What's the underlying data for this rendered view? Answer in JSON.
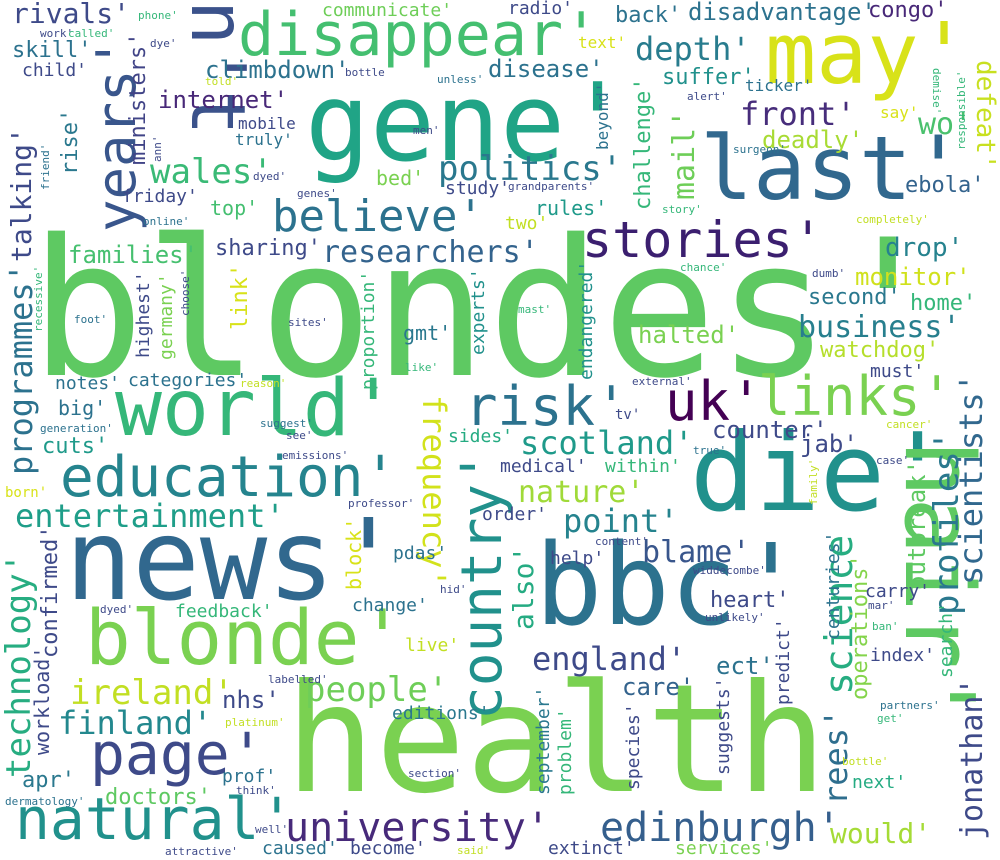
{
  "words": {
    "blondes": {
      "text": "blondes'",
      "color": "#5ec962"
    },
    "health": {
      "text": "health",
      "color": "#7ad151"
    },
    "news": {
      "text": "news'",
      "color": "#31688e"
    },
    "bbc": {
      "text": "bbc'",
      "color": "#2c728e"
    },
    "die": {
      "text": "die'",
      "color": "#21918c"
    },
    "gene": {
      "text": "gene'",
      "color": "#20a486"
    },
    "world": {
      "text": "world'",
      "color": "#35b779"
    },
    "last": {
      "text": "last'",
      "color": "#31688e"
    },
    "may": {
      "text": "may'",
      "color": "#d8e219"
    },
    "hair": {
      "text": "hair'",
      "color": "#5ec962"
    },
    "nt": {
      "text": "n't",
      "color": "#3b528b"
    },
    "blonde": {
      "text": "blonde'",
      "color": "#7ad151"
    },
    "natural": {
      "text": "natural'",
      "color": "#21918c"
    },
    "disappear": {
      "text": "disappear'",
      "color": "#44bf70"
    },
    "education": {
      "text": "education'",
      "color": "#25848e"
    },
    "page": {
      "text": "page'",
      "color": "#3e4a89"
    },
    "country": {
      "text": "country'",
      "color": "#21918c"
    },
    "risk": {
      "text": "risk'",
      "color": "#2c728e"
    },
    "uk": {
      "text": "uk'",
      "color": "#440154"
    },
    "links": {
      "text": "links'",
      "color": "#7ad151"
    },
    "stories": {
      "text": "stories'",
      "color": "#3b1f6f"
    },
    "believe": {
      "text": "believe'",
      "color": "#2c728e"
    },
    "university": {
      "text": "university'",
      "color": "#472a7a"
    },
    "edinburgh": {
      "text": "edinburgh'",
      "color": "#355f8d"
    },
    "years": {
      "text": "years'",
      "color": "#39568c"
    },
    "entertainment": {
      "text": "entertainment'",
      "color": "#1f9e89"
    },
    "science": {
      "text": "science",
      "color": "#27ad81"
    },
    "scotland": {
      "text": "scotland'",
      "color": "#1f9a8a"
    },
    "england": {
      "text": "england'",
      "color": "#3e4a89"
    },
    "people": {
      "text": "people'",
      "color": "#6ece58"
    },
    "ireland": {
      "text": "ireland'",
      "color": "#c2df23"
    },
    "finland": {
      "text": "finland'",
      "color": "#23888e"
    },
    "politics": {
      "text": "politics'",
      "color": "#2a788e"
    },
    "scientists": {
      "text": "scientists'",
      "color": "#31688e"
    },
    "profiles": {
      "text": "profiles'",
      "color": "#2a788e"
    },
    "jonathan": {
      "text": "jonathan'",
      "color": "#3e4a89"
    },
    "programmes": {
      "text": "programmes'",
      "color": "#2c728e"
    },
    "technology": {
      "text": "technology'",
      "color": "#27ad81"
    },
    "frequency": {
      "text": "frequency'",
      "color": "#d2e21b"
    },
    "depth": {
      "text": "depth'",
      "color": "#287c8e"
    },
    "front": {
      "text": "front'",
      "color": "#472d7b"
    },
    "point": {
      "text": "point'",
      "color": "#25838e"
    },
    "nature": {
      "text": "nature'",
      "color": "#a0da39"
    },
    "blame": {
      "text": "blame'",
      "color": "#39568c"
    },
    "rees": {
      "text": "rees'",
      "color": "#2e6e8e"
    },
    "business": {
      "text": "business'",
      "color": "#277f8e"
    },
    "researchers": {
      "text": "researchers'",
      "color": "#33638d"
    },
    "talking": {
      "text": "talking'",
      "color": "#3e4a89"
    },
    "wales": {
      "text": "wales'",
      "color": "#3aba76"
    },
    "mail": {
      "text": "mail'",
      "color": "#6ece58"
    },
    "would": {
      "text": "would'",
      "color": "#a5db36"
    },
    "rivals": {
      "text": "rivals'",
      "color": "#3e4a89"
    },
    "deadly": {
      "text": "deadly'",
      "color": "#a8db34"
    },
    "drop": {
      "text": "drop'",
      "color": "#26828e"
    },
    "monitor": {
      "text": "monitor'",
      "color": "#d0e11c"
    },
    "ebola": {
      "text": "ebola'",
      "color": "#33638d"
    },
    "wo": {
      "text": "wo'",
      "color": "#4ac16d"
    },
    "defeat": {
      "text": "defeat'",
      "color": "#c8e020"
    },
    "also": {
      "text": "also'",
      "color": "#25ab82"
    },
    "halted": {
      "text": "halted'",
      "color": "#7ad151"
    },
    "families": {
      "text": "families'",
      "color": "#46c06f"
    },
    "outbreak": {
      "text": "outbreak'",
      "color": "#5ec962"
    },
    "ministers": {
      "text": "ministers'",
      "color": "#414487"
    },
    "challenge": {
      "text": "challenge'",
      "color": "#35b779"
    },
    "disease": {
      "text": "disease'",
      "color": "#2c728e"
    },
    "internet": {
      "text": "internet'",
      "color": "#482878"
    },
    "climbdown": {
      "text": "climbdown'",
      "color": "#2c728e"
    },
    "disadvantage": {
      "text": "disadvantage'",
      "color": "#2c728e"
    },
    "watchdog": {
      "text": "watchdog'",
      "color": "#b5de2b"
    },
    "counter": {
      "text": "counter'",
      "color": "#3e4a89"
    },
    "heart": {
      "text": "heart'",
      "color": "#3e4a89"
    },
    "operations": {
      "text": "operations'",
      "color": "#84d44b"
    },
    "care": {
      "text": "care'",
      "color": "#33638d"
    },
    "cuts": {
      "text": "cuts'",
      "color": "#1f9a8a"
    },
    "doctors": {
      "text": "doctors'",
      "color": "#5ec962"
    },
    "nhs": {
      "text": "nhs'",
      "color": "#3e4a89"
    },
    "apr": {
      "text": "apr'",
      "color": "#2a788e"
    },
    "index": {
      "text": "index'",
      "color": "#3e4a89"
    },
    "ect": {
      "text": "ect'",
      "color": "#2c728e"
    },
    "workload": {
      "text": "workload'",
      "color": "#3e4a89"
    },
    "confirmed": {
      "text": "confirmed'",
      "color": "#3e4a89"
    },
    "suffer": {
      "text": "suffer'",
      "color": "#21918c"
    },
    "congo": {
      "text": "congo'",
      "color": "#482878"
    },
    "back": {
      "text": "back'",
      "color": "#2c728e"
    },
    "communicate": {
      "text": "communicate'",
      "color": "#6ece58"
    },
    "radio": {
      "text": "radio'",
      "color": "#3e4a89"
    },
    "skill": {
      "text": "skill'",
      "color": "#2c728e"
    },
    "child": {
      "text": "child'",
      "color": "#3e4a89"
    },
    "rise": {
      "text": "rise'",
      "color": "#2a788e"
    },
    "friday": {
      "text": "friday'",
      "color": "#3e4a89"
    },
    "top": {
      "text": "top'",
      "color": "#44bf70"
    },
    "bed": {
      "text": "bed'",
      "color": "#7ad151"
    },
    "study": {
      "text": "study'",
      "color": "#3e4a89"
    },
    "rules": {
      "text": "rules'",
      "color": "#1f9a8a"
    },
    "two": {
      "text": "two'",
      "color": "#c2df23"
    },
    "sharing": {
      "text": "sharing'",
      "color": "#3e4a89"
    },
    "link": {
      "text": "link'",
      "color": "#d8e219"
    },
    "highest": {
      "text": "highest'",
      "color": "#3e4a89"
    },
    "germany": {
      "text": "germany'",
      "color": "#7ad151"
    },
    "second": {
      "text": "second'",
      "color": "#2a788e"
    },
    "home": {
      "text": "home'",
      "color": "#35b779"
    },
    "must": {
      "text": "must'",
      "color": "#3e4a89"
    },
    "gmt": {
      "text": "gmt'",
      "color": "#2a788e"
    },
    "experts": {
      "text": "experts'",
      "color": "#21918c"
    },
    "proportion": {
      "text": "proportion'",
      "color": "#35b779"
    },
    "endangered": {
      "text": "endangered'",
      "color": "#21918c"
    },
    "notes": {
      "text": "notes'",
      "color": "#2c728e"
    },
    "categories": {
      "text": "categories'",
      "color": "#2c728e"
    },
    "big": {
      "text": "big'",
      "color": "#2c728e"
    },
    "sides": {
      "text": "sides'",
      "color": "#25ab82"
    },
    "jab": {
      "text": "jab'",
      "color": "#3e4a89"
    },
    "medical": {
      "text": "medical'",
      "color": "#3e4a89"
    },
    "within": {
      "text": "within'",
      "color": "#35b779"
    },
    "order": {
      "text": "order'",
      "color": "#3e4a89"
    },
    "block": {
      "text": "block'",
      "color": "#d8e219"
    },
    "pdas": {
      "text": "pdas'",
      "color": "#2c728e"
    },
    "help": {
      "text": "help'",
      "color": "#3e4a89"
    },
    "change": {
      "text": "change'",
      "color": "#2c728e"
    },
    "live": {
      "text": "live'",
      "color": "#c2df23"
    },
    "feedback": {
      "text": "feedback'",
      "color": "#35b779"
    },
    "editions": {
      "text": "editions'",
      "color": "#2a788e"
    },
    "predict": {
      "text": "predict'",
      "color": "#3e4a89"
    },
    "carry": {
      "text": "carry'",
      "color": "#3e4a89"
    },
    "centuries": {
      "text": "centuries'",
      "color": "#2c728e"
    },
    "search": {
      "text": "search'",
      "color": "#35b779"
    },
    "suggests": {
      "text": "suggests'",
      "color": "#3e4a89"
    },
    "species": {
      "text": "species'",
      "color": "#3e4a89"
    },
    "problem": {
      "text": "problem'",
      "color": "#35b779"
    },
    "september": {
      "text": "september'",
      "color": "#2a788e"
    },
    "prof": {
      "text": "prof'",
      "color": "#2c728e"
    },
    "next": {
      "text": "next'",
      "color": "#25ab82"
    },
    "caused": {
      "text": "caused'",
      "color": "#2c728e"
    },
    "become": {
      "text": "become'",
      "color": "#3e4a89"
    },
    "extinct": {
      "text": "extinct'",
      "color": "#3e4a89"
    },
    "services": {
      "text": "services'",
      "color": "#7ad151"
    },
    "mobile": {
      "text": "mobile",
      "color": "#3e4a89"
    },
    "truly": {
      "text": "truly'",
      "color": "#2c728e"
    },
    "ticker": {
      "text": "ticker'",
      "color": "#2c728e"
    },
    "say": {
      "text": "say'",
      "color": "#d8e219"
    },
    "beyond": {
      "text": "beyond'",
      "color": "#2c728e"
    },
    "text": {
      "text": "text'",
      "color": "#d8e219"
    },
    "phone": {
      "text": "phone'",
      "color": "#35b779"
    },
    "called": {
      "text": "called'",
      "color": "#35b779"
    },
    "work": {
      "text": "work'",
      "color": "#3e4a89"
    },
    "dye": {
      "text": "dye'",
      "color": "#3e4a89"
    },
    "bottle": {
      "text": "bottle",
      "color": "#3e4a89"
    },
    "unless": {
      "text": "unless'",
      "color": "#2c728e"
    },
    "alert": {
      "text": "alert'",
      "color": "#3e4a89"
    },
    "demise": {
      "text": "demise'",
      "color": "#35b779"
    },
    "responsible": {
      "text": "responsible'",
      "color": "#35b779"
    },
    "told": {
      "text": "told'",
      "color": "#c2df23"
    },
    "men": {
      "text": "men'",
      "color": "#3e4a89"
    },
    "ann": {
      "text": "ann'",
      "color": "#3e4a89"
    },
    "dyed": {
      "text": "dyed'",
      "color": "#3e4a89"
    },
    "surgeon": {
      "text": "surgeon'",
      "color": "#2c728e"
    },
    "friend": {
      "text": "friend'",
      "color": "#2c728e"
    },
    "genes": {
      "text": "genes'",
      "color": "#3e4a89"
    },
    "grandparents": {
      "text": "grandparents'",
      "color": "#3e4a89"
    },
    "story": {
      "text": "story'",
      "color": "#35b779"
    },
    "completely": {
      "text": "completely'",
      "color": "#c2df23"
    },
    "online": {
      "text": "online'",
      "color": "#2c728e"
    },
    "chance": {
      "text": "chance'",
      "color": "#35b779"
    },
    "dumb": {
      "text": "dumb'",
      "color": "#3e4a89"
    },
    "choose": {
      "text": "choose'",
      "color": "#3e4a89"
    },
    "recessive": {
      "text": "recessive'",
      "color": "#35b779"
    },
    "foot": {
      "text": "foot'",
      "color": "#2c728e"
    },
    "sites": {
      "text": "sites'",
      "color": "#3e4a89"
    },
    "mast": {
      "text": "mast'",
      "color": "#35b779"
    },
    "like": {
      "text": "like'",
      "color": "#35b779"
    },
    "reason": {
      "text": "reason'",
      "color": "#c2df23"
    },
    "external": {
      "text": "external'",
      "color": "#3e4a89"
    },
    "generation": {
      "text": "generation'",
      "color": "#2c728e"
    },
    "suggest": {
      "text": "suggest'",
      "color": "#2c728e"
    },
    "see": {
      "text": "see'",
      "color": "#3e4a89"
    },
    "emissions": {
      "text": "emissions'",
      "color": "#3e4a89"
    },
    "tv": {
      "text": "tv'",
      "color": "#3e4a89"
    },
    "true": {
      "text": "true'",
      "color": "#2c728e"
    },
    "family": {
      "text": "family'",
      "color": "#c2df23"
    },
    "cancer": {
      "text": "cancer'",
      "color": "#c2df23"
    },
    "case": {
      "text": "case'",
      "color": "#3e4a89"
    },
    "born": {
      "text": "born'",
      "color": "#d8e219"
    },
    "professor": {
      "text": "professor'",
      "color": "#3e4a89"
    },
    "content": {
      "text": "content'",
      "color": "#3e4a89"
    },
    "hid": {
      "text": "hid'",
      "color": "#3e4a89"
    },
    "widdecombe": {
      "text": "widdecombe'",
      "color": "#3e4a89"
    },
    "dyed2": {
      "text": "dyed'",
      "color": "#3e4a89"
    },
    "unlikely": {
      "text": "unlikely'",
      "color": "#3e4a89"
    },
    "mar": {
      "text": "mar'",
      "color": "#3e4a89"
    },
    "ban": {
      "text": "ban'",
      "color": "#35b779"
    },
    "labelled": {
      "text": "labelled'",
      "color": "#3e4a89"
    },
    "platinum": {
      "text": "platinum'",
      "color": "#c2df23"
    },
    "partners": {
      "text": "partners'",
      "color": "#2c728e"
    },
    "get": {
      "text": "get'",
      "color": "#35b779"
    },
    "bottle2": {
      "text": "bottle'",
      "color": "#c2df23"
    },
    "think": {
      "text": "think'",
      "color": "#3e4a89"
    },
    "section": {
      "text": "section'",
      "color": "#3e4a89"
    },
    "dermatology": {
      "text": "dermatology'",
      "color": "#2c728e"
    },
    "well": {
      "text": "well'",
      "color": "#3e4a89"
    },
    "attractive": {
      "text": "attractive'",
      "color": "#3e4a89"
    },
    "said": {
      "text": "said'",
      "color": "#c2df23"
    }
  }
}
